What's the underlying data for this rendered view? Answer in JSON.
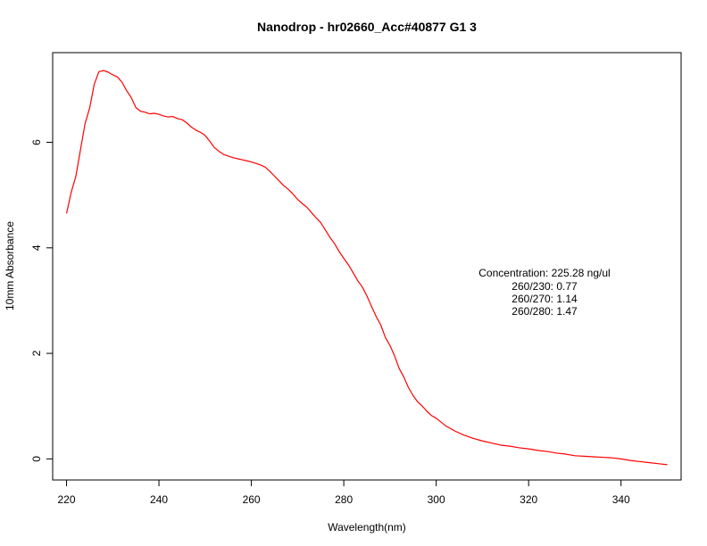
{
  "chart_data": {
    "type": "line",
    "title": "Nanodrop - hr02660_Acc#40877 G1 3",
    "xlabel": "Wavelength(nm)",
    "ylabel": "10mm Absorbance",
    "xlim": [
      217,
      353
    ],
    "ylim": [
      -0.4,
      7.7
    ],
    "x_ticks": [
      "220",
      "240",
      "260",
      "280",
      "300",
      "320",
      "340"
    ],
    "y_ticks": [
      "0",
      "2",
      "4",
      "6"
    ],
    "grid": false,
    "line_color": "#ff0000",
    "series": [
      {
        "x": [
          220,
          221,
          222,
          223,
          224,
          225,
          226,
          227,
          228,
          229,
          230,
          231,
          232,
          233,
          234,
          235,
          236,
          237,
          238,
          239,
          240,
          241,
          242,
          243,
          244,
          245,
          246,
          247,
          248,
          249,
          250,
          251,
          252,
          253,
          254,
          255,
          256,
          257,
          258,
          259,
          260,
          261,
          262,
          263,
          264,
          265,
          266,
          267,
          268,
          269,
          270,
          271,
          272,
          273,
          274,
          275,
          276,
          277,
          278,
          279,
          280,
          281,
          282,
          283,
          284,
          285,
          286,
          287,
          288,
          289,
          290,
          291,
          292,
          293,
          294,
          295,
          296,
          297,
          298,
          299,
          300,
          302,
          304,
          306,
          308,
          310,
          312,
          314,
          316,
          318,
          320,
          322,
          324,
          326,
          328,
          330,
          332,
          334,
          336,
          338,
          340,
          342,
          344,
          346,
          348,
          350
        ],
        "values": [
          4.65,
          5.05,
          5.35,
          5.85,
          6.35,
          6.65,
          7.1,
          7.34,
          7.36,
          7.33,
          7.28,
          7.24,
          7.14,
          6.98,
          6.85,
          6.66,
          6.59,
          6.57,
          6.54,
          6.55,
          6.53,
          6.5,
          6.48,
          6.49,
          6.45,
          6.43,
          6.37,
          6.29,
          6.23,
          6.19,
          6.13,
          6.02,
          5.9,
          5.83,
          5.77,
          5.74,
          5.71,
          5.69,
          5.67,
          5.65,
          5.63,
          5.6,
          5.57,
          5.53,
          5.45,
          5.36,
          5.27,
          5.18,
          5.11,
          5.02,
          4.92,
          4.84,
          4.77,
          4.67,
          4.57,
          4.48,
          4.34,
          4.2,
          4.08,
          3.93,
          3.8,
          3.68,
          3.53,
          3.38,
          3.26,
          3.09,
          2.89,
          2.7,
          2.54,
          2.3,
          2.15,
          1.95,
          1.71,
          1.55,
          1.35,
          1.2,
          1.08,
          1.0,
          0.9,
          0.82,
          0.77,
          0.63,
          0.53,
          0.45,
          0.39,
          0.34,
          0.3,
          0.26,
          0.24,
          0.21,
          0.19,
          0.16,
          0.14,
          0.11,
          0.09,
          0.06,
          0.05,
          0.04,
          0.03,
          0.02,
          0.0,
          -0.03,
          -0.05,
          -0.07,
          -0.09,
          -0.11
        ]
      }
    ],
    "annotation": [
      "Concentration: 225.28 ng/ul",
      "260/230: 0.77",
      "260/270: 1.14",
      "260/280: 1.47"
    ]
  }
}
